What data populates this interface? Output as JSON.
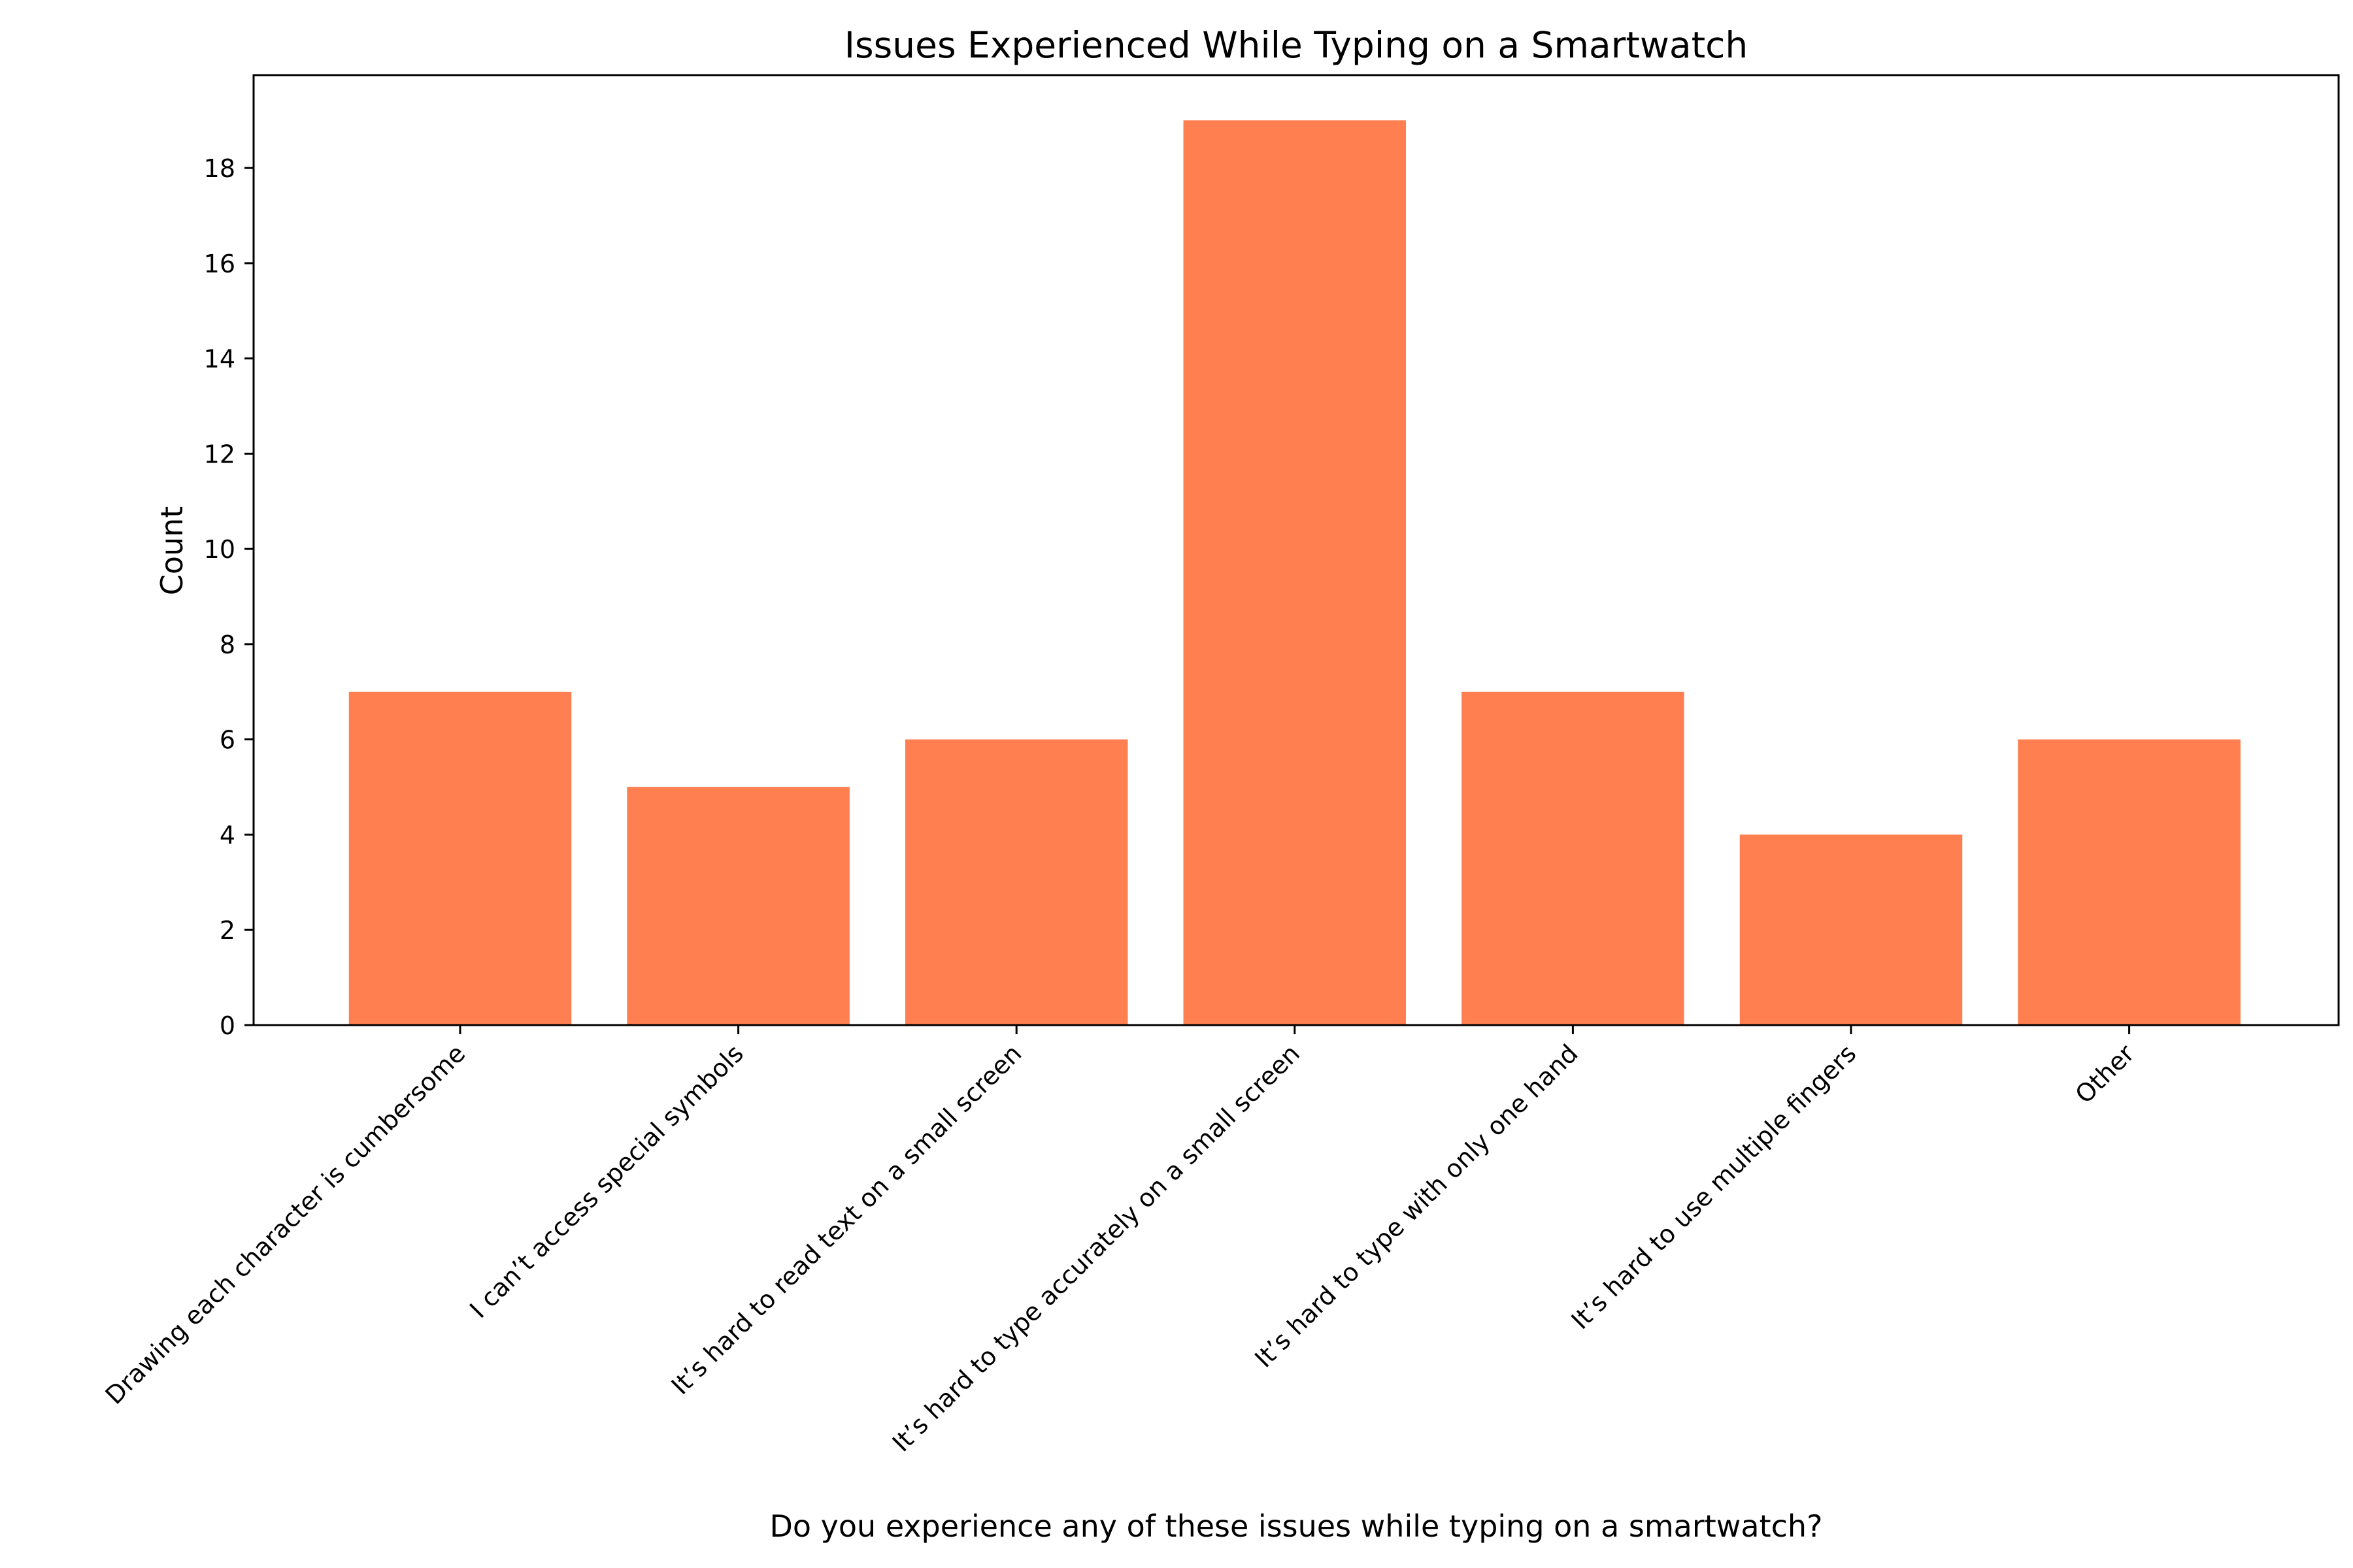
{
  "chart_data": {
    "type": "bar",
    "title": "Issues Experienced While Typing on a Smartwatch",
    "xlabel": "Do you experience any of these issues while typing on a smartwatch?",
    "ylabel": "Count",
    "categories": [
      "Drawing each character is cumbersome",
      "I can’t access special symbols",
      "It’s hard to read text on a small screen",
      "It’s hard to type accurately on a small screen",
      "It’s hard to type with only one hand",
      "It’s hard to use multiple fingers",
      "Other"
    ],
    "values": [
      7,
      5,
      6,
      19,
      7,
      4,
      6
    ],
    "ylim": [
      0,
      19.95
    ],
    "yticks": [
      "0",
      "2",
      "4",
      "6",
      "8",
      "10",
      "12",
      "14",
      "16",
      "18"
    ],
    "bar_color": "#ff7f50",
    "grid": false,
    "legend": "none"
  }
}
